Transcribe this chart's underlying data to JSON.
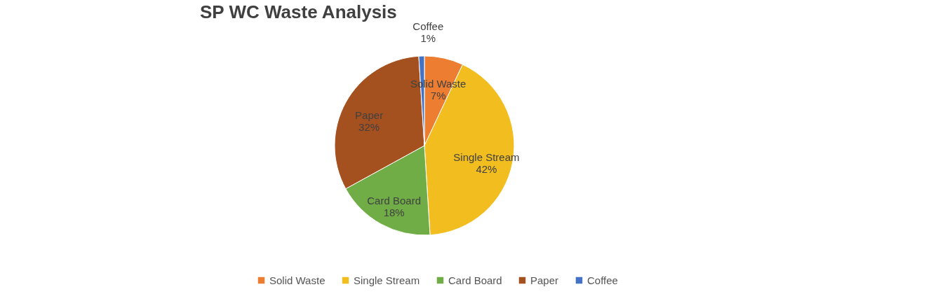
{
  "chart_data": {
    "type": "pie",
    "title": "SP WC Waste Analysis",
    "categories": [
      "Solid Waste",
      "Single Stream",
      "Card Board",
      "Paper",
      "Coffee"
    ],
    "values": [
      7,
      42,
      18,
      32,
      1
    ],
    "value_labels": [
      "7%",
      "42%",
      "18%",
      "32%",
      "1%"
    ],
    "colors": [
      "#ed7d31",
      "#f2bd1e",
      "#70ad47",
      "#a5501f",
      "#4472c4"
    ],
    "legend": "bottom"
  }
}
